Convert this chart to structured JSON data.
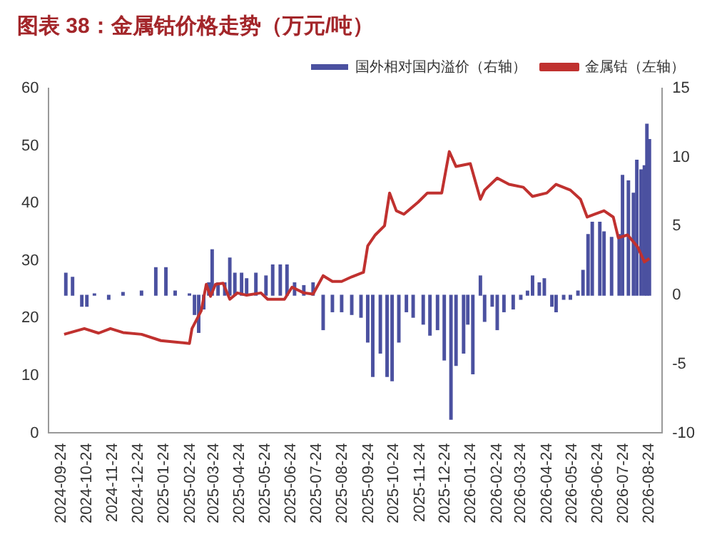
{
  "chart_data": {
    "type": "bar",
    "title": "图表 38：金属钴价格走势（万元/吨）",
    "legend": "top",
    "grid": false,
    "xlim": [
      "2024-09-24",
      "2026-08-24"
    ],
    "xticks": [
      "2024-09-24",
      "2024-10-24",
      "2024-11-24",
      "2024-12-24",
      "2025-01-24",
      "2025-02-24",
      "2025-03-24",
      "2025-04-24",
      "2025-05-24",
      "2025-06-24",
      "2025-07-24",
      "2025-08-24",
      "2025-09-24",
      "2025-10-24",
      "2025-11-24",
      "2025-12-24",
      "2026-01-24",
      "2026-02-24",
      "2026-03-24",
      "2026-04-24",
      "2026-05-24",
      "2026-06-24",
      "2026-07-24",
      "2026-08-24"
    ],
    "ylim": [
      0,
      60
    ],
    "yticks": [
      0,
      10,
      20,
      30,
      40,
      50,
      60
    ],
    "y2lim": [
      -10,
      15
    ],
    "y2ticks": [
      -10,
      -5,
      0,
      5,
      10,
      15
    ],
    "series": [
      {
        "name": "国外相对国内溢价（右轴）",
        "axis": "y2",
        "color": "#4b51a0",
        "x": [
          "2024-09-29",
          "2024-10-07",
          "2024-10-18",
          "2024-10-24",
          "2024-11-02",
          "2024-11-19",
          "2024-12-06",
          "2024-12-28",
          "2025-01-14",
          "2025-01-26",
          "2025-02-06",
          "2025-02-23",
          "2025-03-01",
          "2025-03-06",
          "2025-03-12",
          "2025-03-18",
          "2025-03-22",
          "2025-03-29",
          "2025-04-06",
          "2025-04-12",
          "2025-04-18",
          "2025-04-26",
          "2025-05-02",
          "2025-05-13",
          "2025-05-25",
          "2025-06-02",
          "2025-06-11",
          "2025-06-19",
          "2025-06-28",
          "2025-07-09",
          "2025-07-20",
          "2025-08-01",
          "2025-08-12",
          "2025-08-23",
          "2025-09-04",
          "2025-09-15",
          "2025-09-23",
          "2025-09-29",
          "2025-10-08",
          "2025-10-16",
          "2025-10-22",
          "2025-10-30",
          "2025-11-08",
          "2025-11-16",
          "2025-11-28",
          "2025-12-06",
          "2025-12-15",
          "2025-12-23",
          "2025-12-31",
          "2026-01-06",
          "2026-01-15",
          "2026-01-20",
          "2026-01-26",
          "2026-02-04",
          "2026-02-09",
          "2026-02-18",
          "2026-02-24",
          "2026-03-04",
          "2026-03-15",
          "2026-03-24",
          "2026-04-01",
          "2026-04-07",
          "2026-04-15",
          "2026-04-21",
          "2026-04-30",
          "2026-05-05",
          "2026-05-14",
          "2026-05-22",
          "2026-05-31",
          "2026-06-06",
          "2026-06-12",
          "2026-06-17",
          "2026-06-26",
          "2026-07-01",
          "2026-07-10",
          "2026-07-19",
          "2026-07-23",
          "2026-07-30",
          "2026-08-05",
          "2026-08-09",
          "2026-08-14",
          "2026-08-18",
          "2026-08-21",
          "2026-08-24"
        ],
        "values": [
          1.6,
          1.3,
          -0.8,
          -0.8,
          0.1,
          -0.3,
          0.2,
          0.3,
          2.0,
          2.0,
          0.3,
          0.1,
          -1.4,
          -2.7,
          -1.0,
          0.9,
          3.3,
          0.9,
          0.9,
          2.7,
          1.6,
          1.6,
          1.2,
          1.6,
          1.4,
          2.2,
          2.2,
          2.2,
          0.9,
          0.7,
          0.9,
          -2.5,
          -1.2,
          -1.2,
          -1.4,
          -1.6,
          -3.4,
          -5.9,
          -4.2,
          -5.9,
          -6.2,
          -3.4,
          -1.2,
          -1.6,
          -2.1,
          -2.9,
          -2.5,
          -4.7,
          -9.0,
          -5.1,
          -4.2,
          -2.1,
          -5.7,
          1.4,
          -1.9,
          -0.8,
          -2.5,
          -1.2,
          -1.0,
          -0.3,
          0.3,
          1.4,
          0.9,
          1.2,
          -0.8,
          -1.2,
          -0.3,
          -0.3,
          0.3,
          1.8,
          4.4,
          5.3,
          5.3,
          4.6,
          4.2,
          4.4,
          8.7,
          8.3,
          7.4,
          9.8,
          9.1,
          9.4,
          12.4,
          11.3
        ]
      },
      {
        "name": "金属钴（左轴）",
        "type": "line",
        "axis": "y",
        "color": "#c0312f",
        "x": [
          "2024-09-27",
          "2024-10-21",
          "2024-11-07",
          "2024-11-21",
          "2024-12-06",
          "2024-12-28",
          "2025-01-20",
          "2025-02-23",
          "2025-02-26",
          "2025-03-09",
          "2025-03-15",
          "2025-03-20",
          "2025-03-26",
          "2025-04-04",
          "2025-04-12",
          "2025-04-21",
          "2025-05-02",
          "2025-05-19",
          "2025-05-27",
          "2025-06-16",
          "2025-06-25",
          "2025-07-09",
          "2025-07-20",
          "2025-08-01",
          "2025-08-12",
          "2025-08-23",
          "2025-09-04",
          "2025-09-18",
          "2025-09-23",
          "2025-10-02",
          "2025-10-13",
          "2025-10-19",
          "2025-10-27",
          "2025-11-05",
          "2025-11-22",
          "2025-12-03",
          "2025-12-20",
          "2025-12-29",
          "2026-01-06",
          "2026-01-23",
          "2026-02-04",
          "2026-02-09",
          "2026-02-24",
          "2026-03-10",
          "2026-03-27",
          "2026-04-07",
          "2026-04-24",
          "2026-05-05",
          "2026-05-22",
          "2026-06-03",
          "2026-06-11",
          "2026-06-20",
          "2026-07-01",
          "2026-07-12",
          "2026-07-18",
          "2026-07-29",
          "2026-08-10",
          "2026-08-18",
          "2026-08-24"
        ],
        "values": [
          17.2,
          18.2,
          17.4,
          18.2,
          17.5,
          17.2,
          16.1,
          15.6,
          18.2,
          21.3,
          25.9,
          23.8,
          25.9,
          26.1,
          23.3,
          24.4,
          24.0,
          24.4,
          23.3,
          23.3,
          25.4,
          24.4,
          24.2,
          27.4,
          26.4,
          26.4,
          27.2,
          28.0,
          32.6,
          34.5,
          36.1,
          41.8,
          38.7,
          38.1,
          40.2,
          41.8,
          41.8,
          49.0,
          46.4,
          46.9,
          40.7,
          42.3,
          44.4,
          43.3,
          42.8,
          41.2,
          41.8,
          43.3,
          42.3,
          40.7,
          37.6,
          38.1,
          38.7,
          37.6,
          34.0,
          34.5,
          32.4,
          29.8,
          30.4
        ]
      }
    ]
  }
}
